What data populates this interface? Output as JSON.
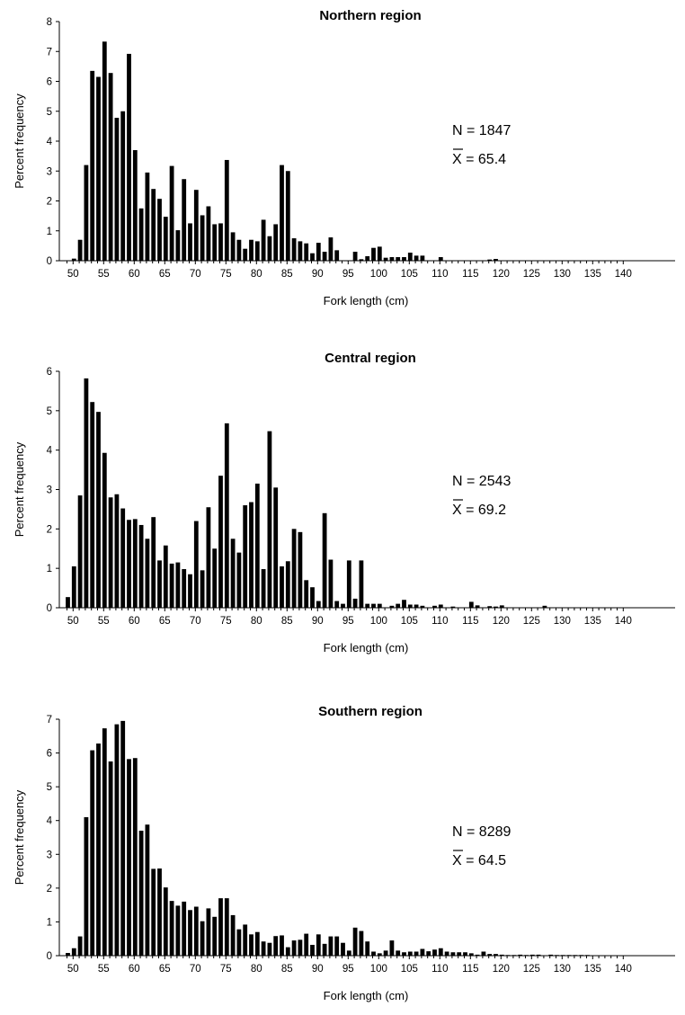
{
  "chart_data": [
    {
      "type": "bar",
      "title": "Northern region",
      "xlabel": "Fork length (cm)",
      "ylabel": "Percent frequency",
      "xlim": [
        50,
        140
      ],
      "ylim": [
        0,
        8
      ],
      "xticks": [
        "50",
        "55",
        "60",
        "65",
        "70",
        "75",
        "80",
        "85",
        "90",
        "95",
        "100",
        "105",
        "110",
        "115",
        "120",
        "125",
        "130",
        "135",
        "140"
      ],
      "yticks": [
        "0",
        "1",
        "2",
        "3",
        "4",
        "5",
        "6",
        "7",
        "8"
      ],
      "grid": false,
      "annotations": {
        "n": "N = 1847",
        "mean": "X = 65.4"
      },
      "x": [
        49,
        50,
        51,
        52,
        53,
        54,
        55,
        56,
        57,
        58,
        59,
        60,
        61,
        62,
        63,
        64,
        65,
        66,
        67,
        68,
        69,
        70,
        71,
        72,
        73,
        74,
        75,
        76,
        77,
        78,
        79,
        80,
        81,
        82,
        83,
        84,
        85,
        86,
        87,
        88,
        89,
        90,
        91,
        92,
        93,
        94,
        95,
        96,
        97,
        98,
        99,
        100,
        101,
        102,
        103,
        104,
        105,
        106,
        107,
        108,
        109,
        110,
        111,
        112,
        113,
        114,
        115,
        116,
        117,
        118,
        119,
        120
      ],
      "values": [
        0,
        0.07,
        0.7,
        3.2,
        6.35,
        6.15,
        7.33,
        6.28,
        4.78,
        5.0,
        6.92,
        3.7,
        1.75,
        2.95,
        2.4,
        2.07,
        1.47,
        3.17,
        1.02,
        2.73,
        1.25,
        2.37,
        1.52,
        1.82,
        1.22,
        1.25,
        3.37,
        0.95,
        0.7,
        0.4,
        0.7,
        0.65,
        1.37,
        0.82,
        1.22,
        3.2,
        3.0,
        0.75,
        0.65,
        0.58,
        0.25,
        0.6,
        0.3,
        0.78,
        0.35,
        0,
        0,
        0.3,
        0.05,
        0.15,
        0.43,
        0.47,
        0.1,
        0.12,
        0.12,
        0.12,
        0.27,
        0.17,
        0.17,
        0,
        0,
        0.12,
        0,
        0,
        0,
        0,
        0,
        0,
        0,
        0.04,
        0.06,
        0
      ]
    },
    {
      "type": "bar",
      "title": "Central region",
      "xlabel": "Fork length (cm)",
      "ylabel": "Percent frequency",
      "xlim": [
        50,
        140
      ],
      "ylim": [
        0,
        6
      ],
      "xticks": [
        "50",
        "55",
        "60",
        "65",
        "70",
        "75",
        "80",
        "85",
        "90",
        "95",
        "100",
        "105",
        "110",
        "115",
        "120",
        "125",
        "130",
        "135",
        "140"
      ],
      "yticks": [
        "0",
        "1",
        "2",
        "3",
        "4",
        "5",
        "6"
      ],
      "grid": false,
      "annotations": {
        "n": "N = 2543",
        "mean": "X = 69.2"
      },
      "x": [
        49,
        50,
        51,
        52,
        53,
        54,
        55,
        56,
        57,
        58,
        59,
        60,
        61,
        62,
        63,
        64,
        65,
        66,
        67,
        68,
        69,
        70,
        71,
        72,
        73,
        74,
        75,
        76,
        77,
        78,
        79,
        80,
        81,
        82,
        83,
        84,
        85,
        86,
        87,
        88,
        89,
        90,
        91,
        92,
        93,
        94,
        95,
        96,
        97,
        98,
        99,
        100,
        101,
        102,
        103,
        104,
        105,
        106,
        107,
        108,
        109,
        110,
        111,
        112,
        113,
        114,
        115,
        116,
        117,
        118,
        119,
        120,
        121,
        122,
        123,
        124,
        125,
        126,
        127
      ],
      "values": [
        0.27,
        1.05,
        2.85,
        5.82,
        5.22,
        4.97,
        3.93,
        2.8,
        2.88,
        2.52,
        2.23,
        2.25,
        2.1,
        1.75,
        2.3,
        1.2,
        1.58,
        1.12,
        1.15,
        0.98,
        0.85,
        2.2,
        0.95,
        2.55,
        1.5,
        3.35,
        4.68,
        1.75,
        1.4,
        2.6,
        2.68,
        3.15,
        0.98,
        4.48,
        3.05,
        1.05,
        1.18,
        2.0,
        1.92,
        0.7,
        0.52,
        0.17,
        2.4,
        1.22,
        0.17,
        0.1,
        1.2,
        0.23,
        1.2,
        0.1,
        0.1,
        0.1,
        0,
        0.05,
        0.1,
        0.2,
        0.08,
        0.08,
        0.05,
        0,
        0.05,
        0.08,
        0,
        0.03,
        0,
        0,
        0.15,
        0.06,
        0,
        0.04,
        0.03,
        0.06,
        0,
        0,
        0,
        0,
        0,
        0,
        0.05
      ]
    },
    {
      "type": "bar",
      "title": "Southern region",
      "xlabel": "Fork length (cm)",
      "ylabel": "Percent frequency",
      "xlim": [
        50,
        140
      ],
      "ylim": [
        0,
        7
      ],
      "xticks": [
        "50",
        "55",
        "60",
        "65",
        "70",
        "75",
        "80",
        "85",
        "90",
        "95",
        "100",
        "105",
        "110",
        "115",
        "120",
        "125",
        "130",
        "135",
        "140"
      ],
      "yticks": [
        "0",
        "1",
        "2",
        "3",
        "4",
        "5",
        "6",
        "7"
      ],
      "grid": false,
      "annotations": {
        "n": "N = 8289",
        "mean": "X = 64.5"
      },
      "x": [
        49,
        50,
        51,
        52,
        53,
        54,
        55,
        56,
        57,
        58,
        59,
        60,
        61,
        62,
        63,
        64,
        65,
        66,
        67,
        68,
        69,
        70,
        71,
        72,
        73,
        74,
        75,
        76,
        77,
        78,
        79,
        80,
        81,
        82,
        83,
        84,
        85,
        86,
        87,
        88,
        89,
        90,
        91,
        92,
        93,
        94,
        95,
        96,
        97,
        98,
        99,
        100,
        101,
        102,
        103,
        104,
        105,
        106,
        107,
        108,
        109,
        110,
        111,
        112,
        113,
        114,
        115,
        116,
        117,
        118,
        119,
        120,
        121,
        122,
        123,
        124,
        125,
        126,
        127,
        128,
        129,
        130,
        131,
        132,
        133,
        134,
        135
      ],
      "values": [
        0.08,
        0.22,
        0.57,
        4.1,
        6.08,
        6.28,
        6.73,
        5.75,
        6.85,
        6.95,
        5.82,
        5.85,
        3.7,
        3.88,
        2.57,
        2.58,
        2.02,
        1.62,
        1.48,
        1.6,
        1.35,
        1.45,
        1.02,
        1.4,
        1.15,
        1.7,
        1.7,
        1.2,
        0.78,
        0.92,
        0.63,
        0.7,
        0.42,
        0.38,
        0.58,
        0.6,
        0.25,
        0.45,
        0.47,
        0.65,
        0.32,
        0.63,
        0.35,
        0.57,
        0.57,
        0.38,
        0.15,
        0.83,
        0.73,
        0.42,
        0.12,
        0.07,
        0.15,
        0.45,
        0.15,
        0.1,
        0.12,
        0.12,
        0.2,
        0.13,
        0.18,
        0.22,
        0.12,
        0.1,
        0.1,
        0.1,
        0.07,
        0.03,
        0.12,
        0.05,
        0.05,
        0.03,
        0.02,
        0.02,
        0.03,
        0.02,
        0.03,
        0.03,
        0,
        0.03,
        0.02,
        0.02,
        0.02,
        0.02,
        0.02,
        0.02,
        0
      ]
    }
  ]
}
